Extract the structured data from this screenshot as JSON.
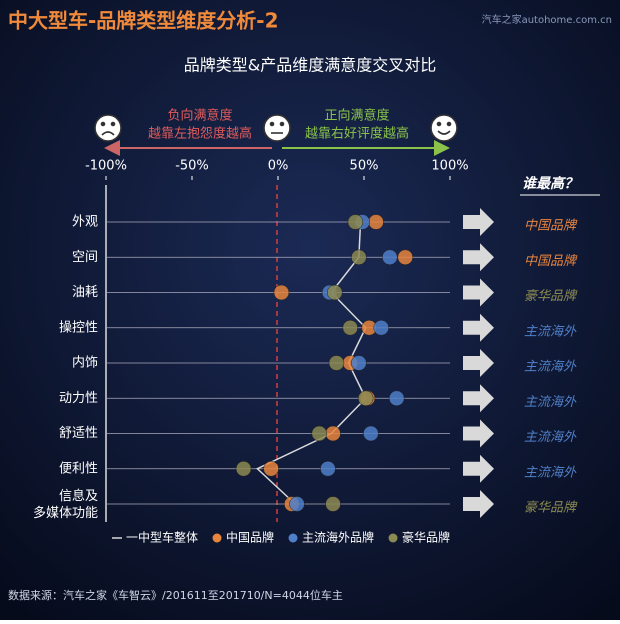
{
  "header": {
    "title": "中大型车-品牌类型维度分析-2",
    "watermark": "汽车之家autohome.com.cn"
  },
  "chart_data": {
    "type": "dot",
    "title": "品牌类型&产品维度满意度交叉对比",
    "annotations": {
      "negative": "负向满意度",
      "negative_note": "越靠左抱怨度越高",
      "positive": "正向满意度",
      "positive_note": "越靠右好评度越高"
    },
    "categories": [
      "外观",
      "空间",
      "油耗",
      "操控性",
      "内饰",
      "动力性",
      "舒适性",
      "便利性",
      "信息及多媒体功能"
    ],
    "series": [
      {
        "name": "一中型车整体",
        "color": "#d9d9d9",
        "style": "line",
        "values": [
          48,
          47,
          31,
          51,
          41,
          51,
          31,
          -12,
          10
        ]
      },
      {
        "name": "中国品牌",
        "color": "#e8853d",
        "style": "dot",
        "values": [
          57,
          74,
          2,
          53,
          42,
          52,
          32,
          -4,
          8
        ]
      },
      {
        "name": "主流海外品牌",
        "color": "#4f7fc9",
        "style": "dot",
        "values": [
          49,
          65,
          30,
          60,
          47,
          69,
          54,
          29,
          11
        ]
      },
      {
        "name": "豪华品牌",
        "color": "#8c8a52",
        "style": "dot",
        "values": [
          45,
          47,
          33,
          42,
          34,
          51,
          24,
          -20,
          32
        ]
      }
    ],
    "xlim": [
      -100,
      100
    ],
    "xticks": [
      {
        "value": -100,
        "label": "-100%"
      },
      {
        "value": -50,
        "label": "-50%"
      },
      {
        "value": 0,
        "label": "0%"
      },
      {
        "value": 50,
        "label": "50%"
      },
      {
        "value": 100,
        "label": "100%"
      }
    ],
    "winner_title": "谁最高？",
    "winners": [
      {
        "label": "中国品牌",
        "color": "#e8853d"
      },
      {
        "label": "中国品牌",
        "color": "#e8853d"
      },
      {
        "label": "豪华品牌",
        "color": "#8c8a52"
      },
      {
        "label": "主流海外",
        "color": "#4f7fc9"
      },
      {
        "label": "主流海外",
        "color": "#4f7fc9"
      },
      {
        "label": "主流海外",
        "color": "#4f7fc9"
      },
      {
        "label": "主流海外",
        "color": "#4f7fc9"
      },
      {
        "label": "主流海外",
        "color": "#4f7fc9"
      },
      {
        "label": "豪华品牌",
        "color": "#8c8a52"
      }
    ]
  },
  "footer": {
    "source": "数据来源：汽车之家《车智云》/201611至201710/N=4044位车主"
  }
}
